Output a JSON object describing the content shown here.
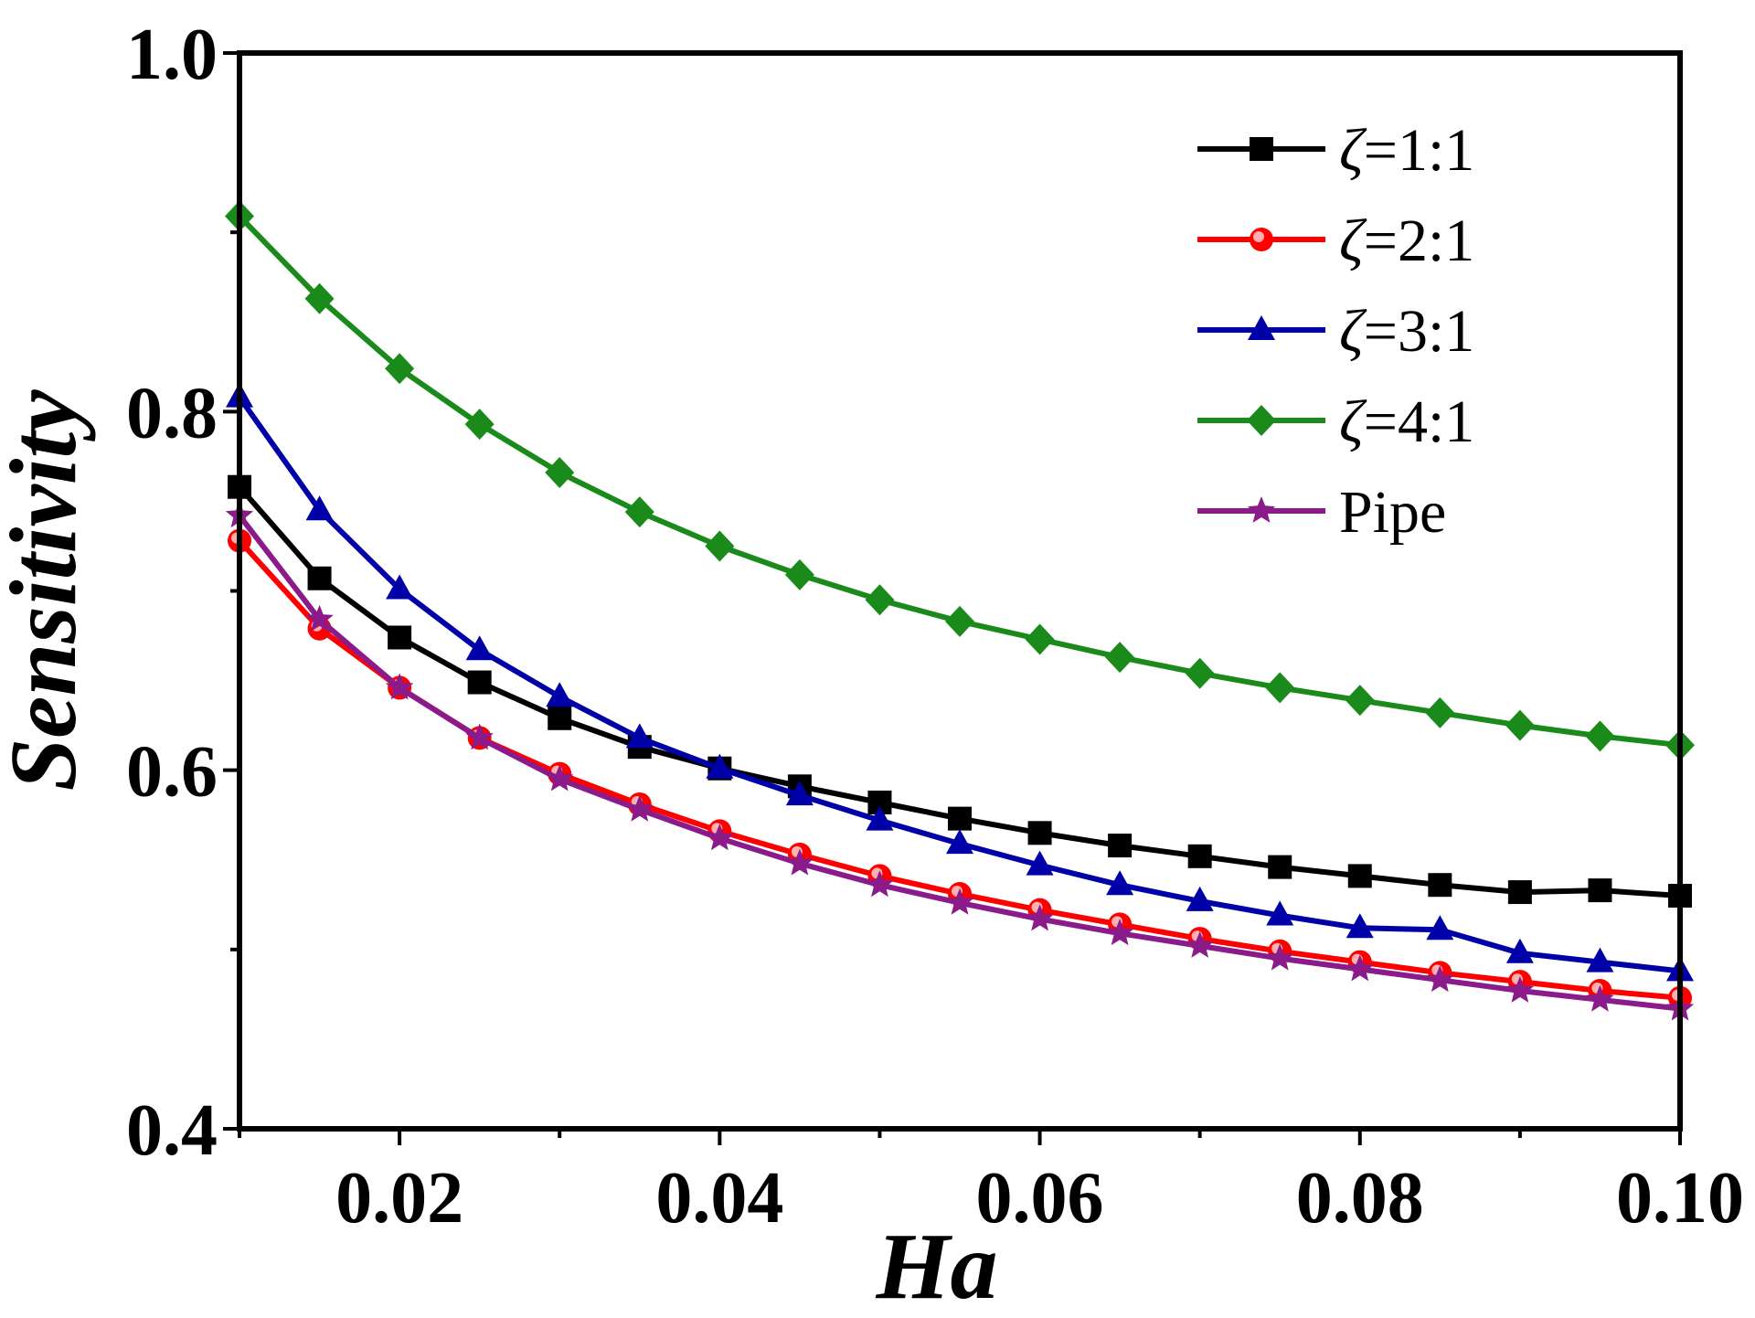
{
  "chart_data": {
    "type": "line",
    "title": "",
    "xlabel": "Ha",
    "ylabel": "Sensitivity",
    "xlim": [
      0.01,
      0.1
    ],
    "ylim": [
      0.4,
      1.0
    ],
    "x_ticks": [
      0.02,
      0.04,
      0.06,
      0.08,
      0.1
    ],
    "x_tick_labels": [
      "0.02",
      "0.04",
      "0.06",
      "0.08",
      "0.10"
    ],
    "y_ticks": [
      0.4,
      0.6,
      0.8,
      1.0
    ],
    "y_tick_labels": [
      "0.4",
      "0.6",
      "0.8",
      "1.0"
    ],
    "grid": false,
    "legend_position": "top-right",
    "x": [
      0.01,
      0.015,
      0.02,
      0.025,
      0.03,
      0.035,
      0.04,
      0.045,
      0.05,
      0.055,
      0.06,
      0.065,
      0.07,
      0.075,
      0.08,
      0.085,
      0.09,
      0.095,
      0.1
    ],
    "series": [
      {
        "name": "ζ=1:1",
        "legend_symbol": "ζ",
        "legend_suffix": "=1:1",
        "color": "#000000",
        "marker": "square",
        "values": [
          0.758,
          0.707,
          0.674,
          0.649,
          0.629,
          0.613,
          0.601,
          0.591,
          0.582,
          0.573,
          0.565,
          0.558,
          0.552,
          0.546,
          0.541,
          0.536,
          0.532,
          0.533,
          0.53
        ]
      },
      {
        "name": "ζ=2:1",
        "legend_symbol": "ζ",
        "legend_suffix": "=2:1",
        "color": "#ff0000",
        "marker": "circle",
        "values": [
          0.728,
          0.679,
          0.646,
          0.618,
          0.598,
          0.581,
          0.566,
          0.553,
          0.541,
          0.531,
          0.522,
          0.514,
          0.506,
          0.499,
          0.493,
          0.487,
          0.482,
          0.477,
          0.473
        ]
      },
      {
        "name": "ζ=3:1",
        "legend_symbol": "ζ",
        "legend_suffix": "=3:1",
        "color": "#0000a8",
        "marker": "triangle",
        "values": [
          0.808,
          0.745,
          0.701,
          0.667,
          0.641,
          0.618,
          0.601,
          0.586,
          0.572,
          0.559,
          0.547,
          0.536,
          0.527,
          0.519,
          0.512,
          0.511,
          0.498,
          0.493,
          0.488
        ]
      },
      {
        "name": "ζ=4:1",
        "legend_symbol": "ζ",
        "legend_suffix": "=4:1",
        "color": "#1a8a1a",
        "marker": "diamond",
        "values": [
          0.909,
          0.863,
          0.824,
          0.793,
          0.766,
          0.744,
          0.725,
          0.709,
          0.695,
          0.683,
          0.673,
          0.663,
          0.654,
          0.646,
          0.639,
          0.632,
          0.625,
          0.619,
          0.614
        ]
      },
      {
        "name": "Pipe",
        "legend_symbol": "",
        "legend_suffix": "Pipe",
        "color": "#8b1a8b",
        "marker": "star",
        "values": [
          0.742,
          0.684,
          0.646,
          0.618,
          0.595,
          0.578,
          0.562,
          0.548,
          0.536,
          0.526,
          0.517,
          0.509,
          0.502,
          0.495,
          0.489,
          0.483,
          0.477,
          0.472,
          0.467
        ]
      }
    ]
  }
}
